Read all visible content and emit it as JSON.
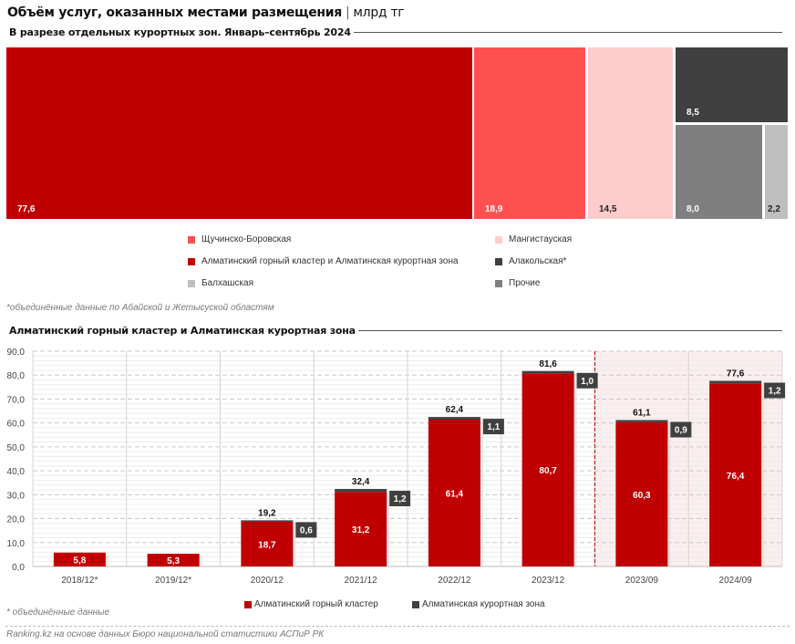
{
  "header": {
    "title": "Объём услуг, оказанных местами размещения",
    "separator": "|",
    "unit": "млрд тг"
  },
  "treemap_section": {
    "subtitle": "В разрезе отдельных курортных зон. Январь–сентябрь 2024",
    "footnote": "*объединённые данные по Абайской и Жетысуской областям",
    "legend": [
      {
        "label": "Щучинско-Боровская",
        "color": "#ff5050"
      },
      {
        "label": "Мангистауская",
        "color": "#ffcccc"
      },
      {
        "label": "Алматинский горный кластер и Алматинская курортная зона",
        "color": "#c00000"
      },
      {
        "label": "Алакольская*",
        "color": "#404040"
      },
      {
        "label": "Балхашская",
        "color": "#bfbfbf"
      },
      {
        "label": "Прочие",
        "color": "#7f7f7f"
      }
    ]
  },
  "bar_section": {
    "subtitle": "Алматинский горный кластер и Алматинская курортная зона",
    "footnote": "* объединённые данные",
    "source": "Ranking.kz на основе данных Бюро национальной статистики  АСПиР РК"
  },
  "chart_data": [
    {
      "type": "treemap",
      "title": "В разрезе отдельных курортных зон. Январь–сентябрь 2024",
      "unit": "млрд тг",
      "items": [
        {
          "name": "Алматинский горный кластер и Алматинская курортная зона",
          "value": 77.6,
          "label": "77,6",
          "color": "#c00000",
          "text_color": "#ffffff"
        },
        {
          "name": "Щучинско-Боровская",
          "value": 18.9,
          "label": "18,9",
          "color": "#ff5050",
          "text_color": "#ffffff"
        },
        {
          "name": "Мангистауская",
          "value": 14.5,
          "label": "14,5",
          "color": "#ffcccc",
          "text_color": "#222222"
        },
        {
          "name": "Алакольская*",
          "value": 8.5,
          "label": "8,5",
          "color": "#404040",
          "text_color": "#ffffff"
        },
        {
          "name": "Прочие",
          "value": 8.0,
          "label": "8,0",
          "color": "#7f7f7f",
          "text_color": "#ffffff"
        },
        {
          "name": "Балхашская",
          "value": 2.2,
          "label": "2,2",
          "color": "#bfbfbf",
          "text_color": "#222222"
        }
      ]
    },
    {
      "type": "bar",
      "stacked": true,
      "title": "Алматинский горный кластер и Алматинская курортная зона",
      "categories": [
        "2018/12*",
        "2019/12*",
        "2020/12",
        "2021/12",
        "2022/12",
        "2023/12",
        "2023/09",
        "2024/09"
      ],
      "series": [
        {
          "name": "Алматинский горный кластер",
          "color": "#c00000",
          "values": [
            5.8,
            5.3,
            18.7,
            31.2,
            61.4,
            80.7,
            60.3,
            76.4
          ],
          "labels": [
            "5,8",
            "5,3",
            "18,7",
            "31,2",
            "61,4",
            "80,7",
            "60,3",
            "76,4"
          ]
        },
        {
          "name": "Алматинская курортная зона",
          "color": "#404040",
          "values": [
            null,
            null,
            0.6,
            1.2,
            1.1,
            1.0,
            0.9,
            1.2
          ],
          "labels": [
            "",
            "",
            "0,6",
            "1,2",
            "1,1",
            "1,0",
            "0,9",
            "1,2"
          ]
        }
      ],
      "totals": [
        null,
        null,
        19.2,
        32.4,
        62.4,
        81.6,
        61.1,
        77.6
      ],
      "total_labels": [
        "",
        "",
        "19,2",
        "32,4",
        "62,4",
        "81,6",
        "61,1",
        "77,6"
      ],
      "ylim": [
        0,
        90
      ],
      "yticks": [
        0,
        10,
        20,
        30,
        40,
        50,
        60,
        70,
        80,
        90
      ],
      "ytick_labels": [
        "0,0",
        "10,0",
        "20,0",
        "30,0",
        "40,0",
        "50,0",
        "60,0",
        "70,0",
        "80,0",
        "90,0"
      ],
      "highlight_from_category": "2023/09",
      "highlight_color": "#fbeeee",
      "divider_color": "#c00000",
      "grid": true,
      "legend_position": "bottom"
    }
  ]
}
